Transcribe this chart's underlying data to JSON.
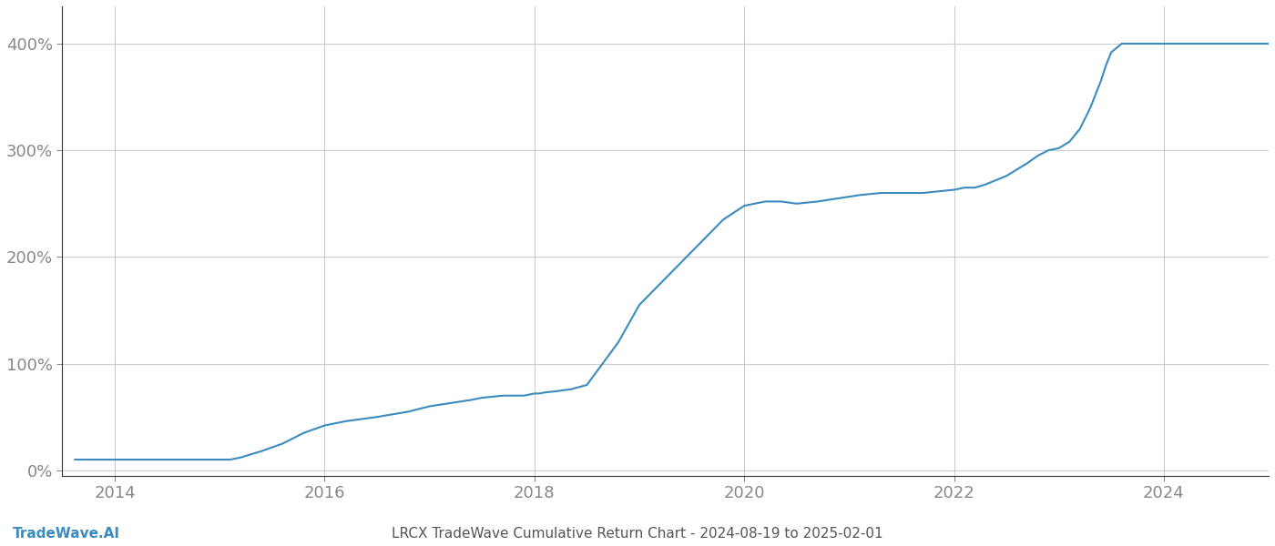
{
  "title": "LRCX TradeWave Cumulative Return Chart - 2024-08-19 to 2025-02-01",
  "watermark": "TradeWave.AI",
  "line_color": "#3a8bbf",
  "background_color": "#ffffff",
  "grid_color": "#cccccc",
  "xlim": [
    2013.5,
    2025.0
  ],
  "ylim": [
    -0.05,
    4.35
  ],
  "yticks": [
    0,
    1,
    2,
    3,
    4
  ],
  "ytick_labels": [
    "0%",
    "100%",
    "200%",
    "300%",
    "400%"
  ],
  "xticks": [
    2014,
    2016,
    2018,
    2020,
    2022,
    2024
  ],
  "x_values": [
    2013.62,
    2014.0,
    2014.3,
    2014.6,
    2015.0,
    2015.1,
    2015.2,
    2015.4,
    2015.6,
    2015.8,
    2016.0,
    2016.2,
    2016.5,
    2016.8,
    2017.0,
    2017.2,
    2017.4,
    2017.5,
    2017.6,
    2017.7,
    2017.8,
    2017.9,
    2018.0,
    2018.05,
    2018.1,
    2018.2,
    2018.35,
    2018.5,
    2018.65,
    2018.8,
    2019.0,
    2019.2,
    2019.4,
    2019.6,
    2019.8,
    2020.0,
    2020.1,
    2020.2,
    2020.35,
    2020.5,
    2020.7,
    2020.9,
    2021.1,
    2021.3,
    2021.5,
    2021.7,
    2021.9,
    2022.0,
    2022.1,
    2022.2,
    2022.3,
    2022.4,
    2022.5,
    2022.6,
    2022.7,
    2022.8,
    2022.9,
    2023.0,
    2023.1,
    2023.2,
    2023.3,
    2023.4,
    2023.45,
    2023.5,
    2023.6,
    2023.7,
    2023.8,
    2023.9,
    2024.0,
    2024.2,
    2024.4,
    2024.6,
    2024.8,
    2025.0
  ],
  "y_values": [
    0.1,
    0.1,
    0.1,
    0.1,
    0.1,
    0.1,
    0.12,
    0.18,
    0.25,
    0.35,
    0.42,
    0.46,
    0.5,
    0.55,
    0.6,
    0.63,
    0.66,
    0.68,
    0.69,
    0.7,
    0.7,
    0.7,
    0.72,
    0.72,
    0.73,
    0.74,
    0.76,
    0.8,
    1.0,
    1.2,
    1.55,
    1.75,
    1.95,
    2.15,
    2.35,
    2.48,
    2.5,
    2.52,
    2.52,
    2.5,
    2.52,
    2.55,
    2.58,
    2.6,
    2.6,
    2.6,
    2.62,
    2.63,
    2.65,
    2.65,
    2.68,
    2.72,
    2.76,
    2.82,
    2.88,
    2.95,
    3.0,
    3.02,
    3.08,
    3.2,
    3.4,
    3.65,
    3.8,
    3.92,
    4.0,
    4.0,
    4.0,
    4.0,
    4.0,
    4.0,
    4.0,
    4.0,
    4.0,
    4.0
  ],
  "line_width": 1.5,
  "title_fontsize": 11,
  "watermark_fontsize": 11,
  "tick_fontsize": 13,
  "tick_color": "#888888",
  "spine_color": "#333333",
  "title_color": "#555555",
  "watermark_color": "#3a8bbf"
}
